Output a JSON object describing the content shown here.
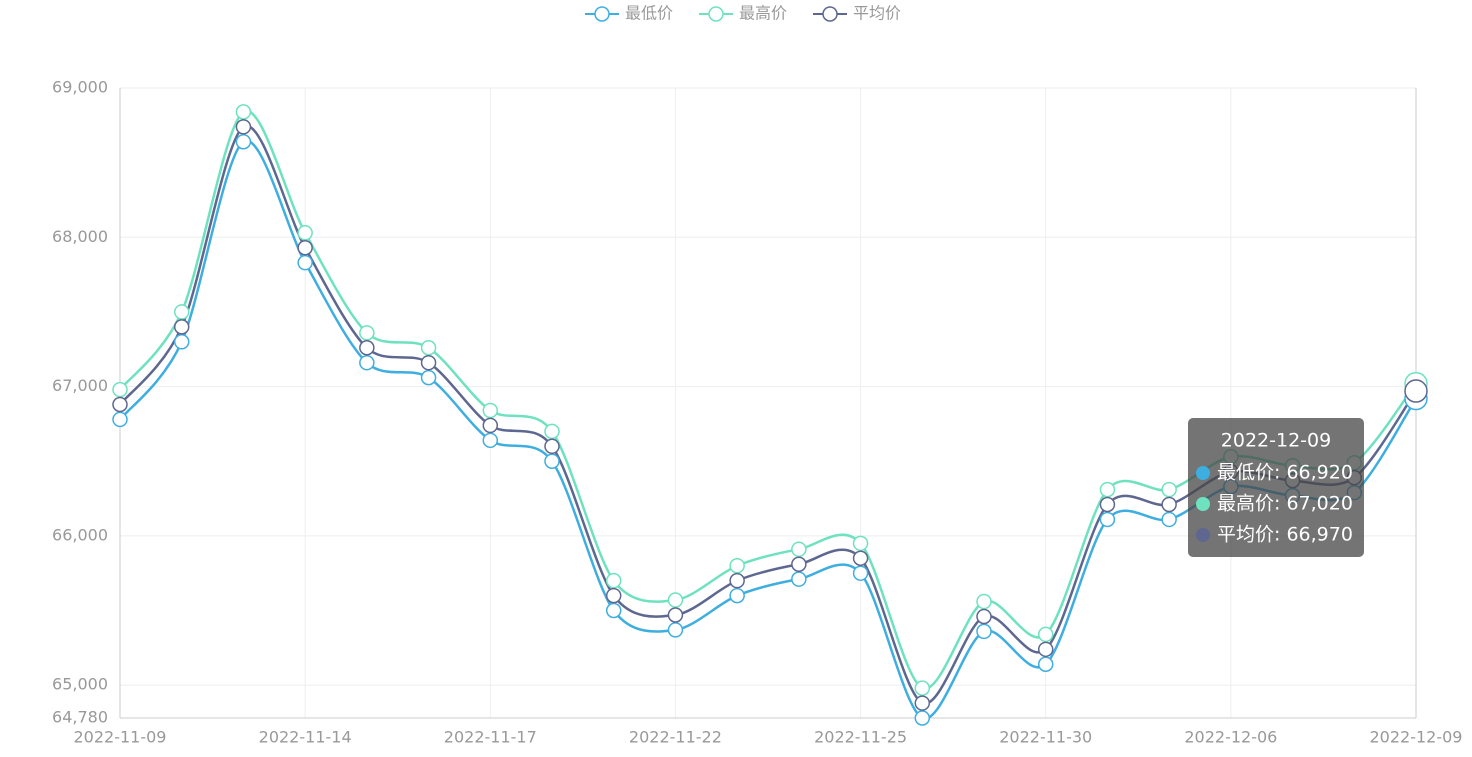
{
  "chart_data": {
    "type": "line",
    "categories": [
      "2022-11-09",
      null,
      null,
      "2022-11-14",
      null,
      null,
      "2022-11-17",
      null,
      null,
      "2022-11-22",
      null,
      null,
      "2022-11-25",
      null,
      null,
      "2022-11-30",
      null,
      null,
      "2022-12-06",
      null,
      null,
      "2022-12-09"
    ],
    "series": [
      {
        "name": "最低价",
        "color": "#3eaee0",
        "values": [
          66780,
          67300,
          68640,
          67830,
          67160,
          67060,
          66640,
          66500,
          65500,
          65370,
          65600,
          65710,
          65750,
          64780,
          65360,
          65140,
          66110,
          66110,
          66330,
          66270,
          66290,
          66920
        ]
      },
      {
        "name": "最高价",
        "color": "#6ee2bf",
        "values": [
          66980,
          67500,
          68840,
          68030,
          67360,
          67260,
          66840,
          66700,
          65700,
          65570,
          65800,
          65910,
          65950,
          64980,
          65560,
          65340,
          66310,
          66310,
          66530,
          66470,
          66490,
          67020
        ]
      },
      {
        "name": "平均价",
        "color": "#5d6790",
        "values": [
          66880,
          67400,
          68740,
          67930,
          67260,
          67160,
          66740,
          66600,
          65600,
          65470,
          65700,
          65810,
          65850,
          64880,
          65460,
          65240,
          66210,
          66210,
          66430,
          66370,
          66390,
          66970
        ]
      }
    ],
    "ylim": [
      64780,
      69000
    ],
    "yticks": [
      {
        "value": 64780,
        "label": "64,780"
      },
      {
        "value": 65000,
        "label": "65,000"
      },
      {
        "value": 66000,
        "label": "66,000"
      },
      {
        "value": 67000,
        "label": "67,000"
      },
      {
        "value": 68000,
        "label": "68,000"
      },
      {
        "value": 69000,
        "label": "69,000"
      }
    ],
    "grid": true,
    "legend": "top",
    "tooltip": {
      "index": 21,
      "title": "2022-12-09",
      "rows": [
        "最低价: 66,920",
        "最高价: 67,020",
        "平均价: 66,970"
      ],
      "background": "rgba(70,70,70,0.75)"
    }
  }
}
